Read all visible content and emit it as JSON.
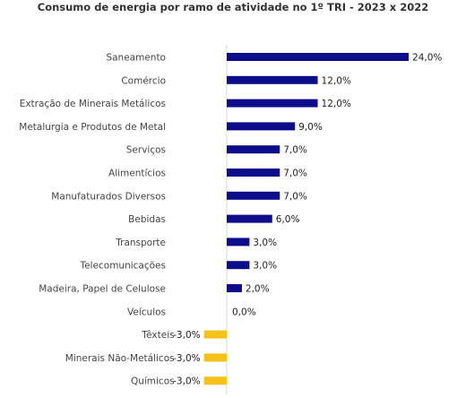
{
  "chart_data": {
    "type": "bar",
    "orientation": "horizontal",
    "title": "Consumo de energia por ramo de atividade no 1º TRI - 2023 x 2022",
    "categories": [
      "Saneamento",
      "Comércio",
      "Extração de Minerais Metálicos",
      "Metalurgia e Produtos de Metal",
      "Serviços",
      "Alimentícios",
      "Manufaturados Diversos",
      "Bebidas",
      "Transporte",
      "Telecomunicações",
      "Madeira, Papel de Celulose",
      "Veículos",
      "Têxteis",
      "Minerais Não-Metálicos",
      "Químicos"
    ],
    "values": [
      24,
      12,
      12,
      9,
      7,
      7,
      7,
      6,
      3,
      3,
      2,
      0,
      -3,
      -3,
      -3
    ],
    "value_labels": [
      "24,0%",
      "12,0%",
      "12,0%",
      "9,0%",
      "7,0%",
      "7,0%",
      "7,0%",
      "6,0%",
      "3,0%",
      "3,0%",
      "2,0%",
      "0,0%",
      "-3,0%",
      "-3,0%",
      "-3,0%"
    ],
    "unit": "%",
    "colors": {
      "positive": "#0d0d8c",
      "negative": "#f6c21a",
      "axis": "#d9d9d9"
    },
    "xlabel": "",
    "ylabel": "",
    "grid": false,
    "legend": "none"
  }
}
